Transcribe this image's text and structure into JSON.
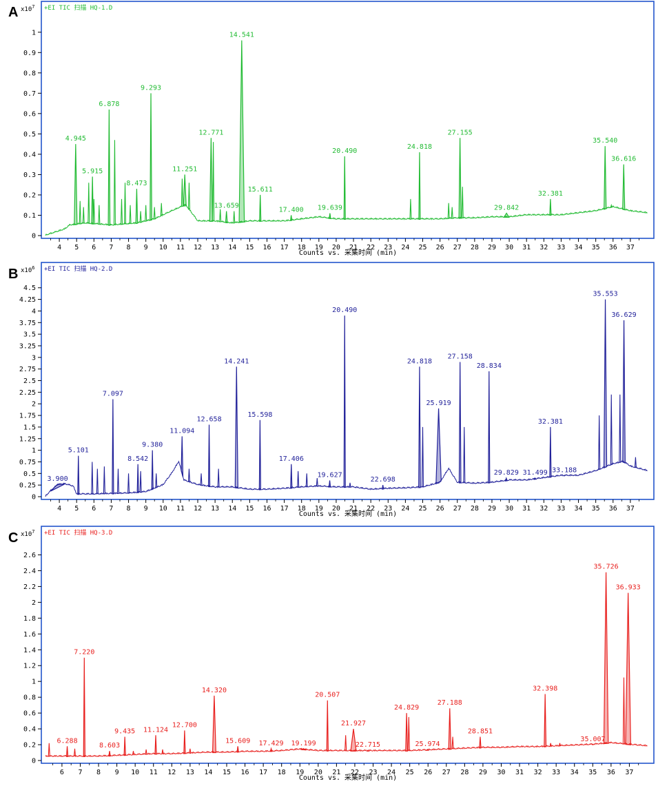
{
  "chart_data": [
    {
      "type": "line",
      "panel": "A",
      "title": "+EI TIC 扫描 HQ-1.D",
      "y_scale_label": "x10^7",
      "xlabel": "Counts vs. 采集时间 (min)",
      "color": "#22bb33",
      "xlim": [
        3.2,
        38.0
      ],
      "ylim": [
        0,
        1.05
      ],
      "x_ticks": [
        4,
        5,
        6,
        7,
        8,
        9,
        10,
        11,
        12,
        13,
        14,
        15,
        16,
        17,
        18,
        19,
        20,
        21,
        22,
        23,
        24,
        25,
        26,
        27,
        28,
        29,
        30,
        31,
        32,
        33,
        34,
        35,
        36,
        37
      ],
      "y_ticks": [
        0,
        0.1,
        0.2,
        0.3,
        0.4,
        0.5,
        0.6,
        0.7,
        0.8,
        0.9,
        1
      ],
      "baseline": [
        [
          3.2,
          0.0
        ],
        [
          4.3,
          0.03
        ],
        [
          4.6,
          0.05
        ],
        [
          5.5,
          0.06
        ],
        [
          7.0,
          0.05
        ],
        [
          8.5,
          0.06
        ],
        [
          9.5,
          0.08
        ],
        [
          10.5,
          0.12
        ],
        [
          11.3,
          0.15
        ],
        [
          12.0,
          0.07
        ],
        [
          13.0,
          0.07
        ],
        [
          14.0,
          0.06
        ],
        [
          15.0,
          0.07
        ],
        [
          16.0,
          0.07
        ],
        [
          17.0,
          0.07
        ],
        [
          18.0,
          0.08
        ],
        [
          19.0,
          0.09
        ],
        [
          20.0,
          0.08
        ],
        [
          21.0,
          0.08
        ],
        [
          22.0,
          0.08
        ],
        [
          23.0,
          0.08
        ],
        [
          24.0,
          0.08
        ],
        [
          25.0,
          0.08
        ],
        [
          26.0,
          0.08
        ],
        [
          27.0,
          0.085
        ],
        [
          28.0,
          0.085
        ],
        [
          29.0,
          0.09
        ],
        [
          30.0,
          0.09
        ],
        [
          31.0,
          0.1
        ],
        [
          32.0,
          0.1
        ],
        [
          33.0,
          0.1
        ],
        [
          34.0,
          0.11
        ],
        [
          35.0,
          0.12
        ],
        [
          36.0,
          0.14
        ],
        [
          37.0,
          0.12
        ],
        [
          38.0,
          0.11
        ]
      ],
      "peaks": [
        {
          "rt": 4.945,
          "height": 0.45,
          "label": "4.945",
          "width": 0.08
        },
        {
          "rt": 5.915,
          "height": 0.29,
          "label": "5.915",
          "width": 0.05
        },
        {
          "rt": 6.878,
          "height": 0.62,
          "label": "6.878",
          "width": 0.05
        },
        {
          "rt": 8.473,
          "height": 0.23,
          "label": "8.473",
          "width": 0.05
        },
        {
          "rt": 9.293,
          "height": 0.7,
          "label": "9.293",
          "width": 0.05
        },
        {
          "rt": 11.251,
          "height": 0.3,
          "label": "11.251",
          "width": 0.08
        },
        {
          "rt": 12.771,
          "height": 0.48,
          "label": "12.771",
          "width": 0.08
        },
        {
          "rt": 13.659,
          "height": 0.12,
          "label": "13.659",
          "width": 0.05
        },
        {
          "rt": 14.541,
          "height": 0.96,
          "label": "14.541",
          "width": 0.15
        },
        {
          "rt": 15.611,
          "height": 0.2,
          "label": "15.611",
          "width": 0.04
        },
        {
          "rt": 17.4,
          "height": 0.1,
          "label": "17.400",
          "width": 0.04
        },
        {
          "rt": 19.639,
          "height": 0.11,
          "label": "19.639",
          "width": 0.04
        },
        {
          "rt": 20.49,
          "height": 0.39,
          "label": "20.490",
          "width": 0.04
        },
        {
          "rt": 24.818,
          "height": 0.41,
          "label": "24.818",
          "width": 0.04
        },
        {
          "rt": 27.155,
          "height": 0.48,
          "label": "27.155",
          "width": 0.06
        },
        {
          "rt": 29.842,
          "height": 0.11,
          "label": "29.842",
          "width": 0.15
        },
        {
          "rt": 32.381,
          "height": 0.18,
          "label": "32.381",
          "width": 0.04
        },
        {
          "rt": 35.54,
          "height": 0.44,
          "label": "35.540",
          "width": 0.06
        },
        {
          "rt": 36.616,
          "height": 0.35,
          "label": "36.616",
          "width": 0.06
        }
      ],
      "minor_peaks": [
        [
          5.2,
          0.17
        ],
        [
          5.4,
          0.14
        ],
        [
          5.7,
          0.26
        ],
        [
          6.0,
          0.18
        ],
        [
          6.3,
          0.15
        ],
        [
          7.2,
          0.47
        ],
        [
          7.6,
          0.18
        ],
        [
          7.8,
          0.26
        ],
        [
          8.1,
          0.15
        ],
        [
          8.7,
          0.12
        ],
        [
          9.0,
          0.15
        ],
        [
          9.5,
          0.14
        ],
        [
          9.9,
          0.16
        ],
        [
          11.1,
          0.28
        ],
        [
          11.5,
          0.26
        ],
        [
          12.9,
          0.46
        ],
        [
          13.3,
          0.13
        ],
        [
          14.1,
          0.12
        ],
        [
          24.3,
          0.18
        ],
        [
          26.5,
          0.16
        ],
        [
          26.7,
          0.14
        ],
        [
          27.3,
          0.24
        ],
        [
          35.9,
          0.15
        ]
      ]
    },
    {
      "type": "line",
      "panel": "B",
      "title": "+EI TIC 扫描 HQ-2.D",
      "y_scale_label": "x10^6",
      "xlabel": "Counts vs. 采集时间 (min)",
      "color": "#22229a",
      "xlim": [
        3.2,
        38.0
      ],
      "ylim": [
        0,
        4.6
      ],
      "x_ticks": [
        4,
        5,
        6,
        7,
        8,
        9,
        10,
        11,
        12,
        13,
        14,
        15,
        16,
        17,
        18,
        19,
        20,
        21,
        22,
        23,
        24,
        25,
        26,
        27,
        28,
        29,
        30,
        31,
        32,
        33,
        34,
        35,
        36,
        37
      ],
      "y_ticks": [
        0,
        0.25,
        0.5,
        0.75,
        1,
        1.25,
        1.5,
        1.75,
        2,
        2.25,
        2.5,
        2.75,
        3,
        3.25,
        3.5,
        3.75,
        4,
        4.25,
        4.5
      ],
      "baseline": [
        [
          3.2,
          0.0
        ],
        [
          3.5,
          0.12
        ],
        [
          3.9,
          0.25
        ],
        [
          4.3,
          0.27
        ],
        [
          4.8,
          0.22
        ],
        [
          5.0,
          0.05
        ],
        [
          6.0,
          0.05
        ],
        [
          7.0,
          0.06
        ],
        [
          8.0,
          0.07
        ],
        [
          9.0,
          0.1
        ],
        [
          10.0,
          0.25
        ],
        [
          10.5,
          0.5
        ],
        [
          10.9,
          0.75
        ],
        [
          11.2,
          0.35
        ],
        [
          12.0,
          0.25
        ],
        [
          13.0,
          0.2
        ],
        [
          14.0,
          0.2
        ],
        [
          15.0,
          0.15
        ],
        [
          16.0,
          0.15
        ],
        [
          17.0,
          0.17
        ],
        [
          18.0,
          0.2
        ],
        [
          19.0,
          0.22
        ],
        [
          20.0,
          0.2
        ],
        [
          21.0,
          0.2
        ],
        [
          22.0,
          0.15
        ],
        [
          23.0,
          0.17
        ],
        [
          24.0,
          0.18
        ],
        [
          25.0,
          0.2
        ],
        [
          26.0,
          0.3
        ],
        [
          26.5,
          0.6
        ],
        [
          27.0,
          0.3
        ],
        [
          28.0,
          0.28
        ],
        [
          29.0,
          0.3
        ],
        [
          30.0,
          0.35
        ],
        [
          31.0,
          0.35
        ],
        [
          32.0,
          0.4
        ],
        [
          33.0,
          0.45
        ],
        [
          34.0,
          0.45
        ],
        [
          35.0,
          0.55
        ],
        [
          36.0,
          0.7
        ],
        [
          36.6,
          0.75
        ],
        [
          37.0,
          0.65
        ],
        [
          38.0,
          0.55
        ]
      ],
      "peaks": [
        {
          "rt": 3.9,
          "height": 0.27,
          "label": "3.900",
          "width": 0.4
        },
        {
          "rt": 5.101,
          "height": 0.88,
          "label": "5.101",
          "width": 0.04
        },
        {
          "rt": 7.097,
          "height": 2.1,
          "label": "7.097",
          "width": 0.04
        },
        {
          "rt": 8.542,
          "height": 0.7,
          "label": "8.542",
          "width": 0.04
        },
        {
          "rt": 9.38,
          "height": 1.0,
          "label": "9.380",
          "width": 0.04
        },
        {
          "rt": 11.094,
          "height": 1.3,
          "label": "11.094",
          "width": 0.05
        },
        {
          "rt": 12.658,
          "height": 1.55,
          "label": "12.658",
          "width": 0.04
        },
        {
          "rt": 14.241,
          "height": 2.8,
          "label": "14.241",
          "width": 0.08
        },
        {
          "rt": 15.598,
          "height": 1.65,
          "label": "15.598",
          "width": 0.04
        },
        {
          "rt": 17.406,
          "height": 0.7,
          "label": "17.406",
          "width": 0.04
        },
        {
          "rt": 19.627,
          "height": 0.35,
          "label": "19.627",
          "width": 0.04
        },
        {
          "rt": 20.49,
          "height": 3.9,
          "label": "20.490",
          "width": 0.04
        },
        {
          "rt": 22.698,
          "height": 0.25,
          "label": "22.698",
          "width": 0.04
        },
        {
          "rt": 24.818,
          "height": 2.8,
          "label": "24.818",
          "width": 0.05
        },
        {
          "rt": 25.919,
          "height": 1.9,
          "label": "25.919",
          "width": 0.15
        },
        {
          "rt": 27.158,
          "height": 2.9,
          "label": "27.158",
          "width": 0.05
        },
        {
          "rt": 28.834,
          "height": 2.7,
          "label": "28.834",
          "width": 0.04
        },
        {
          "rt": 29.829,
          "height": 0.4,
          "label": "29.829",
          "width": 0.05
        },
        {
          "rt": 31.499,
          "height": 0.4,
          "label": "31.499",
          "width": 0.05
        },
        {
          "rt": 32.381,
          "height": 1.5,
          "label": "32.381",
          "width": 0.04
        },
        {
          "rt": 33.188,
          "height": 0.45,
          "label": "33.188",
          "width": 0.04
        },
        {
          "rt": 35.553,
          "height": 4.25,
          "label": "35.553",
          "width": 0.08
        },
        {
          "rt": 36.629,
          "height": 3.8,
          "label": "36.629",
          "width": 0.07
        }
      ],
      "minor_peaks": [
        [
          5.9,
          0.75
        ],
        [
          6.2,
          0.6
        ],
        [
          6.6,
          0.65
        ],
        [
          7.4,
          0.6
        ],
        [
          8.0,
          0.5
        ],
        [
          8.7,
          0.55
        ],
        [
          9.6,
          0.5
        ],
        [
          11.5,
          0.6
        ],
        [
          12.2,
          0.5
        ],
        [
          13.2,
          0.6
        ],
        [
          17.8,
          0.55
        ],
        [
          18.3,
          0.5
        ],
        [
          18.9,
          0.4
        ],
        [
          20.8,
          0.3
        ],
        [
          25.0,
          1.5
        ],
        [
          27.4,
          1.5
        ],
        [
          35.2,
          1.75
        ],
        [
          35.9,
          2.2
        ],
        [
          36.4,
          2.2
        ],
        [
          37.3,
          0.85
        ]
      ]
    },
    {
      "type": "line",
      "panel": "C",
      "title": "+EI TIC 扫描 HQ-3.D",
      "y_scale_label": "x10^7",
      "xlabel": "Counts vs. 采集时间 (min)",
      "color": "#e8201e",
      "xlim": [
        5.1,
        38.0
      ],
      "ylim": [
        0,
        2.7
      ],
      "x_ticks": [
        6,
        7,
        8,
        9,
        10,
        11,
        12,
        13,
        14,
        15,
        16,
        17,
        18,
        19,
        20,
        21,
        22,
        23,
        24,
        25,
        26,
        27,
        28,
        29,
        30,
        31,
        32,
        33,
        34,
        35,
        36,
        37
      ],
      "y_ticks": [
        0,
        0.2,
        0.4,
        0.6,
        0.8,
        1,
        1.2,
        1.4,
        1.6,
        1.8,
        2,
        2.2,
        2.4,
        2.6
      ],
      "baseline": [
        [
          5.1,
          0.05
        ],
        [
          6.0,
          0.05
        ],
        [
          7.0,
          0.05
        ],
        [
          8.0,
          0.05
        ],
        [
          9.0,
          0.06
        ],
        [
          10.0,
          0.07
        ],
        [
          11.0,
          0.08
        ],
        [
          12.0,
          0.08
        ],
        [
          13.0,
          0.09
        ],
        [
          14.0,
          0.1
        ],
        [
          15.0,
          0.1
        ],
        [
          16.0,
          0.11
        ],
        [
          17.0,
          0.11
        ],
        [
          18.0,
          0.12
        ],
        [
          19.0,
          0.14
        ],
        [
          20.0,
          0.12
        ],
        [
          21.0,
          0.12
        ],
        [
          22.0,
          0.12
        ],
        [
          23.0,
          0.12
        ],
        [
          24.0,
          0.12
        ],
        [
          25.0,
          0.12
        ],
        [
          26.0,
          0.13
        ],
        [
          27.0,
          0.14
        ],
        [
          28.0,
          0.15
        ],
        [
          29.0,
          0.16
        ],
        [
          30.0,
          0.16
        ],
        [
          31.0,
          0.17
        ],
        [
          32.0,
          0.17
        ],
        [
          33.0,
          0.18
        ],
        [
          34.0,
          0.19
        ],
        [
          35.0,
          0.2
        ],
        [
          36.0,
          0.22
        ],
        [
          37.0,
          0.2
        ],
        [
          38.0,
          0.18
        ]
      ],
      "peaks": [
        {
          "rt": 6.288,
          "height": 0.18,
          "label": "6.288",
          "width": 0.04
        },
        {
          "rt": 7.22,
          "height": 1.3,
          "label": "7.220",
          "width": 0.04
        },
        {
          "rt": 8.603,
          "height": 0.12,
          "label": "8.603",
          "width": 0.04
        },
        {
          "rt": 9.435,
          "height": 0.3,
          "label": "9.435",
          "width": 0.04
        },
        {
          "rt": 11.124,
          "height": 0.32,
          "label": "11.124",
          "width": 0.04
        },
        {
          "rt": 12.7,
          "height": 0.38,
          "label": "12.700",
          "width": 0.04
        },
        {
          "rt": 14.32,
          "height": 0.82,
          "label": "14.320",
          "width": 0.09
        },
        {
          "rt": 15.609,
          "height": 0.18,
          "label": "15.609",
          "width": 0.04
        },
        {
          "rt": 17.429,
          "height": 0.15,
          "label": "17.429",
          "width": 0.04
        },
        {
          "rt": 19.199,
          "height": 0.15,
          "label": "19.199",
          "width": 0.15
        },
        {
          "rt": 20.507,
          "height": 0.76,
          "label": "20.507",
          "width": 0.04
        },
        {
          "rt": 21.927,
          "height": 0.4,
          "label": "21.927",
          "width": 0.15
        },
        {
          "rt": 22.715,
          "height": 0.13,
          "label": "22.715",
          "width": 0.04
        },
        {
          "rt": 24.829,
          "height": 0.6,
          "label": "24.829",
          "width": 0.05
        },
        {
          "rt": 25.974,
          "height": 0.14,
          "label": "25.974",
          "width": 0.05
        },
        {
          "rt": 27.188,
          "height": 0.66,
          "label": "27.188",
          "width": 0.06
        },
        {
          "rt": 28.851,
          "height": 0.3,
          "label": "28.851",
          "width": 0.04
        },
        {
          "rt": 32.398,
          "height": 0.84,
          "label": "32.398",
          "width": 0.05
        },
        {
          "rt": 35.007,
          "height": 0.2,
          "label": "35.007",
          "width": 0.04
        },
        {
          "rt": 35.726,
          "height": 2.38,
          "label": "35.726",
          "width": 0.12
        },
        {
          "rt": 36.933,
          "height": 2.12,
          "label": "36.933",
          "width": 0.14
        }
      ],
      "minor_peaks": [
        [
          5.3,
          0.22
        ],
        [
          6.7,
          0.15
        ],
        [
          9.9,
          0.12
        ],
        [
          10.6,
          0.14
        ],
        [
          11.5,
          0.14
        ],
        [
          13.0,
          0.15
        ],
        [
          21.5,
          0.32
        ],
        [
          24.95,
          0.55
        ],
        [
          27.35,
          0.3
        ],
        [
          32.7,
          0.22
        ],
        [
          33.2,
          0.22
        ],
        [
          36.7,
          1.05
        ]
      ]
    }
  ]
}
